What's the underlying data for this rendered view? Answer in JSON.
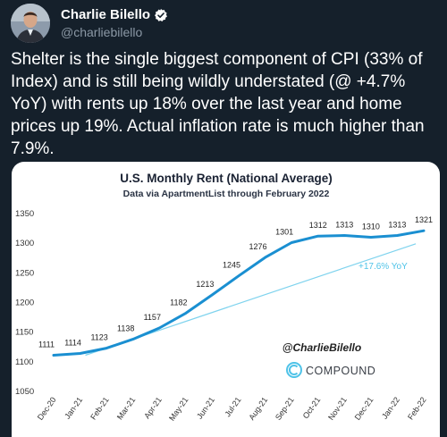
{
  "tweet": {
    "author_name": "Charlie Bilello",
    "handle": "@charliebilello",
    "text": "Shelter is the single biggest component of CPI (33% of Index) and is still being wildly understated (@ +4.7% YoY) with rents up 18% over the last year and home prices up 19%. Actual inflation rate is much higher than 7.9%."
  },
  "colors": {
    "background": "#15202b",
    "accent": "#1d9bf0",
    "line": "#1a8fd1",
    "trend": "#7fd3ee"
  },
  "icons": {
    "verified": "verified-badge-icon",
    "brand": "compound-logo-icon"
  },
  "watermark": {
    "handle": "@CharlieBilello",
    "brand": "COMPOUND"
  },
  "chart_data": {
    "type": "line",
    "title": "U.S. Monthly Rent (National Average)",
    "subtitle": "Data via ApartmentList through February 2022",
    "categories": [
      "Dec-20",
      "Jan-21",
      "Feb-21",
      "Mar-21",
      "Apr-21",
      "May-21",
      "Jun-21",
      "Jul-21",
      "Aug-21",
      "Sep-21",
      "Oct-21",
      "Nov-21",
      "Dec-21",
      "Jan-22",
      "Feb-22"
    ],
    "series": [
      {
        "values": [
          1111,
          1114,
          1123,
          1138,
          1157,
          1182,
          1213,
          1245,
          1276,
          1301,
          1312,
          1313,
          1310,
          1313,
          1321
        ]
      }
    ],
    "trend_annotation": "+17.6% YoY",
    "yticks": [
      1050,
      1100,
      1150,
      1200,
      1250,
      1300,
      1350
    ],
    "ylim": [
      1050,
      1350
    ],
    "grid": false,
    "legend": "none"
  }
}
